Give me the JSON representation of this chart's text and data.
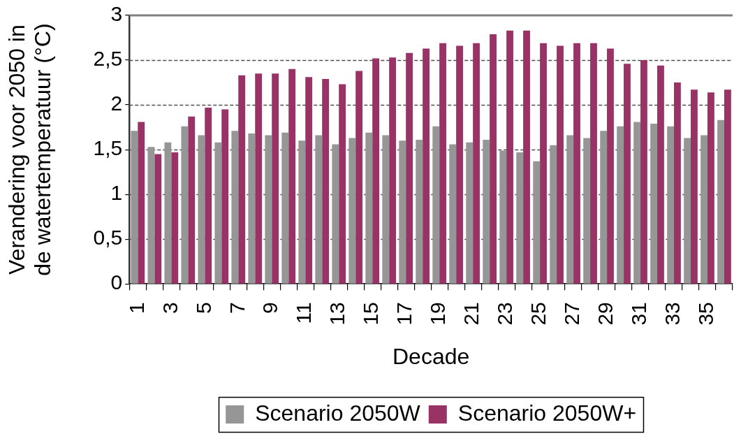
{
  "chart_data": {
    "type": "bar",
    "xlabel": "Decade",
    "ylabel": "Verandering voor 2050 in de watertemperatuur (°C)",
    "categories": [
      "1",
      null,
      "3",
      null,
      "5",
      null,
      "7",
      null,
      "9",
      null,
      "11",
      null,
      "13",
      null,
      "15",
      null,
      "17",
      null,
      "19",
      null,
      "21",
      null,
      "23",
      null,
      "25",
      null,
      "27",
      null,
      "29",
      null,
      "31",
      null,
      "33",
      null,
      "35",
      null
    ],
    "series": [
      {
        "name": "Scenario 2050W",
        "color": "#969696",
        "values": [
          1.71,
          1.53,
          1.58,
          1.76,
          1.66,
          1.58,
          1.71,
          1.68,
          1.66,
          1.69,
          1.6,
          1.66,
          1.56,
          1.63,
          1.69,
          1.66,
          1.6,
          1.61,
          1.76,
          1.56,
          1.58,
          1.61,
          1.49,
          1.47,
          1.37,
          1.55,
          1.66,
          1.63,
          1.71,
          1.76,
          1.81,
          1.79,
          1.76,
          1.63,
          1.66,
          1.83
        ]
      },
      {
        "name": "Scenario 2050W+",
        "color": "#993366",
        "values": [
          1.81,
          1.45,
          1.47,
          1.87,
          1.97,
          1.95,
          2.33,
          2.35,
          2.35,
          2.4,
          2.31,
          2.29,
          2.23,
          2.38,
          2.52,
          2.53,
          2.58,
          2.63,
          2.69,
          2.66,
          2.69,
          2.79,
          2.83,
          2.83,
          2.69,
          2.66,
          2.69,
          2.69,
          2.63,
          2.46,
          2.5,
          2.44,
          2.25,
          2.17,
          2.14,
          2.17
        ]
      }
    ],
    "ylim": [
      0,
      3
    ],
    "yticks": [
      0,
      {
        "value": 0.5,
        "label": "0,5"
      },
      1,
      {
        "value": 1.5,
        "label": "1,5"
      },
      2,
      {
        "value": 2.5,
        "label": "2,5"
      },
      3
    ],
    "grid": "y",
    "legend": "bottom"
  }
}
